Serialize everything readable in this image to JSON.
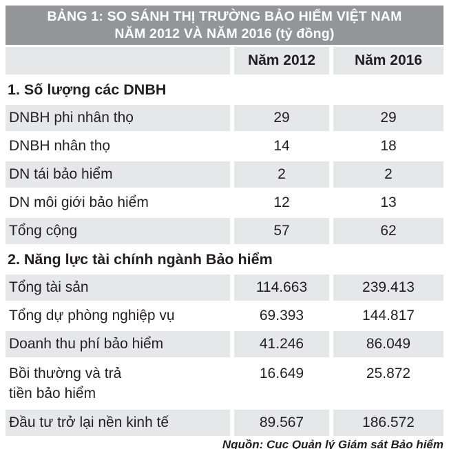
{
  "colors": {
    "title_bg": "#939598",
    "row_gray": "#E6E7E8",
    "text": "#231F20"
  },
  "chart_data": {
    "type": "table",
    "title_line1": "BẢNG 1: SO SÁNH THỊ TRƯỜNG BẢO HIỂM VIỆT NAM",
    "title_line2": "NĂM 2012 VÀ NĂM 2016 (tỷ đồng)",
    "unit": "tỷ đồng",
    "columns": [
      "Năm 2012",
      "Năm 2016"
    ],
    "rows": [
      {
        "type": "section",
        "label": "1. Số lượng các DNBH"
      },
      {
        "type": "data",
        "shade": "gray",
        "label": "DNBH phi nhân thọ",
        "y2012": "29",
        "y2016": "29"
      },
      {
        "type": "data",
        "shade": "white",
        "label": "DNBH nhân thọ",
        "y2012": "14",
        "y2016": "18"
      },
      {
        "type": "data",
        "shade": "gray",
        "label": "DN tái bảo hiểm",
        "y2012": "2",
        "y2016": "2"
      },
      {
        "type": "data",
        "shade": "white",
        "label": "DN môi giới bảo hiểm",
        "y2012": "12",
        "y2016": "13"
      },
      {
        "type": "data",
        "shade": "gray",
        "label": "Tổng cộng",
        "y2012": "57",
        "y2016": "62"
      },
      {
        "type": "section",
        "label": "2. Năng lực tài chính ngành Bảo hiểm"
      },
      {
        "type": "data",
        "shade": "gray",
        "label": "Tổng tài sản",
        "y2012": "114.663",
        "y2016": "239.413"
      },
      {
        "type": "data",
        "shade": "white",
        "label": "Tổng dự phòng nghiệp vụ",
        "y2012": "69.393",
        "y2016": "144.817"
      },
      {
        "type": "data",
        "shade": "gray",
        "label": "Doanh thu phí bảo hiểm",
        "y2012": "41.246",
        "y2016": "86.049"
      },
      {
        "type": "data",
        "shade": "white",
        "label": "Bồi thường và trả\ntiền bảo hiểm",
        "y2012": "16.649",
        "y2016": "25.872"
      },
      {
        "type": "data",
        "shade": "gray",
        "label": "Đầu tư trở lại nền kinh tế",
        "y2012": "89.567",
        "y2016": "186.572"
      }
    ],
    "source": "Nguồn: Cục Quản lý Giám sát Bảo hiểm",
    "legend_position": "none",
    "grid": false
  }
}
